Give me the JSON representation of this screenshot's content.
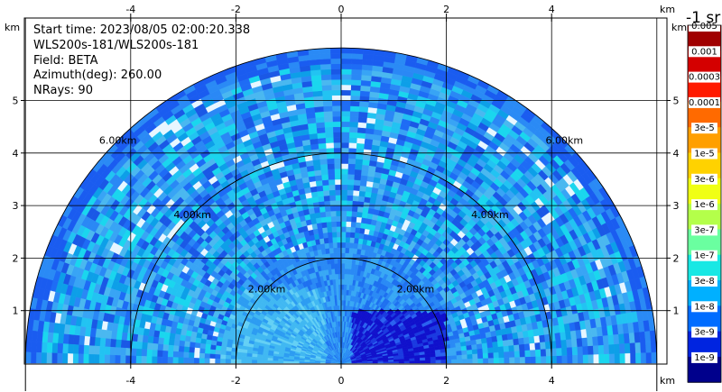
{
  "info": {
    "start_time": "Start time: 2023/08/05 02:00:20.338",
    "instrument": "WLS200s-181/WLS200s-181",
    "field": "Field: BETA",
    "azimuth": "Azimuth(deg): 260.00",
    "nrays": "NRays: 90"
  },
  "colorbar": {
    "title": "-1 sr",
    "labels": [
      "0.005",
      "0.001",
      "0.0003",
      "0.0001",
      "3e-5",
      "1e-5",
      "3e-6",
      "1e-6",
      "3e-7",
      "1e-7",
      "3e-8",
      "1e-8",
      "3e-9",
      "1e-9"
    ],
    "colors": [
      "#a00000",
      "#d40000",
      "#ff1a00",
      "#ff6a00",
      "#ff9f00",
      "#ffd200",
      "#f0ff14",
      "#b4ff4a",
      "#6affa0",
      "#18e8e4",
      "#00b0ff",
      "#006cff",
      "#0024e0",
      "#00008c"
    ]
  },
  "chart_data": {
    "type": "heatmap",
    "subtype": "RHI polar scan",
    "field": "BETA",
    "azimuth_deg": 260.0,
    "n_rays": 90,
    "x_unit": "km",
    "y_unit": "km",
    "xlim": [
      -6.0,
      6.0
    ],
    "ylim": [
      0.0,
      5.9
    ],
    "x_ticks": [
      -4,
      -2,
      0,
      2,
      4
    ],
    "y_ticks": [
      1,
      2,
      3,
      4,
      5
    ],
    "range_rings_km": [
      2.0,
      4.0,
      6.0
    ],
    "ring_labels": [
      "2.00km",
      "4.00km",
      "6.00km"
    ],
    "max_range_km": 6.0,
    "scale": "log",
    "grid": true
  }
}
